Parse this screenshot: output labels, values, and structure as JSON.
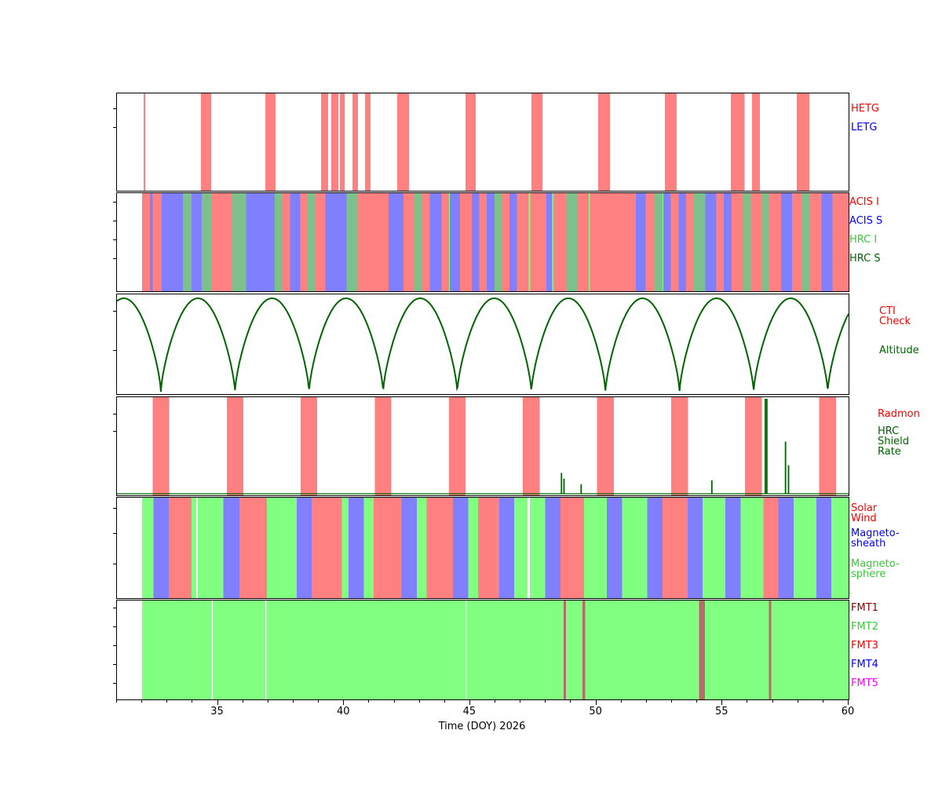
{
  "xlabel_text": "Time (DOY) 2026",
  "chart_data": {
    "type": "timeline",
    "title": "",
    "xlabel": "Time (DOY) 2026",
    "x_axis": {
      "min": 31,
      "max": 60,
      "major_ticks": [
        35,
        40,
        45,
        50,
        55,
        60
      ],
      "minor_tick_step": 1
    },
    "panels": [
      {
        "id": "gratings",
        "labels": [
          {
            "lines": [
              "HETG"
            ],
            "color": "#ff0000"
          },
          {
            "lines": [
              "LETG"
            ],
            "color": "#0000ff"
          }
        ],
        "bar_color": "#ff8080",
        "hetg_intervals": [
          [
            32.06,
            32.12
          ],
          [
            34.33,
            34.73
          ],
          [
            36.88,
            37.29
          ],
          [
            39.09,
            39.37
          ],
          [
            39.5,
            39.78
          ],
          [
            39.84,
            40.03
          ],
          [
            40.34,
            40.56
          ],
          [
            40.83,
            41.05
          ],
          [
            42.11,
            42.58
          ],
          [
            44.82,
            45.22
          ],
          [
            47.43,
            47.87
          ],
          [
            50.08,
            50.54
          ],
          [
            52.72,
            53.19
          ],
          [
            55.34,
            55.87
          ],
          [
            56.18,
            56.49
          ],
          [
            57.95,
            58.45
          ]
        ],
        "letg_intervals": []
      },
      {
        "id": "instruments",
        "labels": [
          {
            "lines": [
              "ACIS I"
            ],
            "color": "#ff0000"
          },
          {
            "lines": [
              "ACIS S"
            ],
            "color": "#0000ff"
          },
          {
            "lines": [
              "HRC I"
            ],
            "color": "#33cc33"
          },
          {
            "lines": [
              "HRC S"
            ],
            "color": "#006400"
          }
        ],
        "colors": {
          "I": "#ff8080",
          "S": "#8080ff",
          "HI": "#80ff80",
          "HS": "#7cc18c"
        },
        "segments": [
          [
            32.0,
            32.3,
            "I"
          ],
          [
            32.3,
            32.42,
            "S"
          ],
          [
            32.42,
            32.78,
            "I"
          ],
          [
            32.78,
            33.62,
            "S"
          ],
          [
            33.62,
            33.96,
            "HS"
          ],
          [
            33.96,
            34.36,
            "S"
          ],
          [
            34.36,
            34.74,
            "HS"
          ],
          [
            34.74,
            35.58,
            "I"
          ],
          [
            35.58,
            36.12,
            "HS"
          ],
          [
            36.12,
            37.26,
            "S"
          ],
          [
            37.26,
            37.56,
            "HS"
          ],
          [
            37.56,
            37.86,
            "I"
          ],
          [
            37.86,
            38.26,
            "S"
          ],
          [
            38.26,
            38.56,
            "I"
          ],
          [
            38.56,
            38.86,
            "HS"
          ],
          [
            38.86,
            39.26,
            "I"
          ],
          [
            39.26,
            40.1,
            "S"
          ],
          [
            40.1,
            40.56,
            "HS"
          ],
          [
            40.56,
            41.76,
            "I"
          ],
          [
            41.76,
            42.36,
            "S"
          ],
          [
            42.36,
            42.8,
            "I"
          ],
          [
            42.8,
            43.1,
            "HS"
          ],
          [
            43.1,
            43.4,
            "I"
          ],
          [
            43.4,
            43.86,
            "S"
          ],
          [
            43.86,
            44.16,
            "I"
          ],
          [
            44.16,
            44.2,
            "HI"
          ],
          [
            44.2,
            44.6,
            "S"
          ],
          [
            44.6,
            45.06,
            "I"
          ],
          [
            45.06,
            45.36,
            "S"
          ],
          [
            45.36,
            45.66,
            "I"
          ],
          [
            45.66,
            45.96,
            "S"
          ],
          [
            45.96,
            46.26,
            "HS"
          ],
          [
            46.26,
            46.56,
            "I"
          ],
          [
            46.56,
            46.86,
            "S"
          ],
          [
            46.86,
            47.32,
            "I"
          ],
          [
            47.32,
            47.38,
            "HI"
          ],
          [
            47.38,
            48.02,
            "I"
          ],
          [
            48.02,
            48.26,
            "S"
          ],
          [
            48.26,
            48.3,
            "HI"
          ],
          [
            48.3,
            48.82,
            "I"
          ],
          [
            48.82,
            49.26,
            "HS"
          ],
          [
            49.26,
            49.7,
            "I"
          ],
          [
            49.7,
            49.74,
            "HI"
          ],
          [
            49.74,
            51.56,
            "I"
          ],
          [
            51.56,
            51.96,
            "S"
          ],
          [
            51.96,
            52.32,
            "I"
          ],
          [
            52.32,
            52.62,
            "HS"
          ],
          [
            52.62,
            52.66,
            "HI"
          ],
          [
            52.66,
            52.96,
            "S"
          ],
          [
            52.96,
            53.26,
            "I"
          ],
          [
            53.26,
            53.56,
            "S"
          ],
          [
            53.56,
            53.86,
            "I"
          ],
          [
            53.86,
            54.32,
            "HS"
          ],
          [
            54.32,
            54.76,
            "S"
          ],
          [
            54.76,
            55.06,
            "I"
          ],
          [
            55.06,
            55.36,
            "S"
          ],
          [
            55.36,
            55.82,
            "I"
          ],
          [
            55.82,
            56.12,
            "HS"
          ],
          [
            56.12,
            56.56,
            "I"
          ],
          [
            56.56,
            56.86,
            "HS"
          ],
          [
            56.86,
            57.32,
            "I"
          ],
          [
            57.32,
            57.76,
            "S"
          ],
          [
            57.76,
            58.16,
            "I"
          ],
          [
            58.16,
            58.46,
            "HS"
          ],
          [
            58.46,
            58.92,
            "I"
          ],
          [
            58.92,
            59.36,
            "S"
          ],
          [
            59.36,
            60.0,
            "I"
          ]
        ]
      },
      {
        "id": "altitude",
        "labels": [
          {
            "lines": [
              "CTI",
              "Check"
            ],
            "color": "#ff0000"
          },
          {
            "lines": [
              "Altitude"
            ],
            "color": "#006400"
          }
        ],
        "line_color": "#006400",
        "first_perigee": 32.74,
        "period": 2.937,
        "perigee_times": [
          32.74,
          35.68,
          38.61,
          41.55,
          44.49,
          47.42,
          50.36,
          53.3,
          56.23,
          59.17
        ]
      },
      {
        "id": "radmon",
        "labels": [
          {
            "lines": [
              "Radmon"
            ],
            "color": "#ff0000"
          },
          {
            "lines": [
              "HRC",
              "Shield",
              "Rate"
            ],
            "color": "#006400"
          }
        ],
        "bar_color": "#ff8080",
        "spike_color": "#006400",
        "radmon_disable_intervals": [
          [
            32.41,
            33.07
          ],
          [
            35.35,
            36.01
          ],
          [
            38.28,
            38.94
          ],
          [
            41.22,
            41.88
          ],
          [
            44.16,
            44.82
          ],
          [
            47.09,
            47.75
          ],
          [
            50.03,
            50.69
          ],
          [
            52.97,
            53.63
          ],
          [
            55.9,
            56.56
          ],
          [
            58.84,
            59.5
          ]
        ],
        "shield_rate_spikes": [
          {
            "t": 48.62,
            "h": 0.22
          },
          {
            "t": 48.72,
            "h": 0.16
          },
          {
            "t": 49.4,
            "h": 0.1
          },
          {
            "t": 54.58,
            "h": 0.14
          },
          {
            "t": 56.7,
            "h": 1.0
          },
          {
            "t": 56.76,
            "h": 1.0
          },
          {
            "t": 57.5,
            "h": 0.55
          },
          {
            "t": 57.62,
            "h": 0.3
          }
        ]
      },
      {
        "id": "regions",
        "labels": [
          {
            "lines": [
              "Solar",
              "Wind"
            ],
            "color": "#ff0000"
          },
          {
            "lines": [
              "Magneto-",
              "sheath"
            ],
            "color": "#0000ff"
          },
          {
            "lines": [
              "Magneto-",
              "sphere"
            ],
            "color": "#33cc33"
          }
        ],
        "colors": {
          "wind": "#ff8080",
          "sheath": "#8080ff",
          "sphere": "#80ff80"
        },
        "segments": [
          [
            32.0,
            32.45,
            "sphere"
          ],
          [
            32.45,
            33.05,
            "sheath"
          ],
          [
            33.05,
            33.95,
            "wind"
          ],
          [
            33.95,
            34.15,
            "sphere"
          ],
          [
            34.2,
            35.22,
            "sphere"
          ],
          [
            35.22,
            35.85,
            "sheath"
          ],
          [
            35.85,
            36.95,
            "wind"
          ],
          [
            36.95,
            38.12,
            "sphere"
          ],
          [
            38.12,
            38.72,
            "sheath"
          ],
          [
            38.72,
            39.92,
            "wind"
          ],
          [
            39.92,
            40.18,
            "sphere"
          ],
          [
            40.18,
            40.78,
            "sheath"
          ],
          [
            40.78,
            41.18,
            "sphere"
          ],
          [
            41.18,
            42.28,
            "wind"
          ],
          [
            42.28,
            42.88,
            "sheath"
          ],
          [
            42.88,
            43.28,
            "sphere"
          ],
          [
            43.28,
            44.32,
            "wind"
          ],
          [
            44.32,
            44.92,
            "sheath"
          ],
          [
            44.92,
            45.32,
            "sphere"
          ],
          [
            45.32,
            46.15,
            "wind"
          ],
          [
            46.15,
            46.75,
            "sheath"
          ],
          [
            46.75,
            47.28,
            "sphere"
          ],
          [
            47.36,
            47.98,
            "sphere"
          ],
          [
            47.98,
            48.58,
            "sheath"
          ],
          [
            48.58,
            49.52,
            "wind"
          ],
          [
            49.52,
            50.42,
            "sphere"
          ],
          [
            50.42,
            51.02,
            "sheath"
          ],
          [
            51.02,
            52.02,
            "sphere"
          ],
          [
            52.02,
            52.62,
            "sheath"
          ],
          [
            52.62,
            53.62,
            "wind"
          ],
          [
            53.62,
            54.22,
            "sheath"
          ],
          [
            54.22,
            55.12,
            "sphere"
          ],
          [
            55.12,
            55.72,
            "sheath"
          ],
          [
            55.72,
            56.62,
            "sphere"
          ],
          [
            56.62,
            57.22,
            "wind"
          ],
          [
            57.22,
            57.82,
            "sheath"
          ],
          [
            57.82,
            58.72,
            "sphere"
          ],
          [
            58.72,
            59.32,
            "sheath"
          ],
          [
            59.32,
            60.0,
            "sphere"
          ]
        ]
      },
      {
        "id": "fmt",
        "labels": [
          {
            "lines": [
              "FMT1"
            ],
            "color": "#8b0000"
          },
          {
            "lines": [
              "FMT2"
            ],
            "color": "#33cc33"
          },
          {
            "lines": [
              "FMT3"
            ],
            "color": "#ff0000"
          },
          {
            "lines": [
              "FMT4"
            ],
            "color": "#0000ff"
          },
          {
            "lines": [
              "FMT5"
            ],
            "color": "#ff00ff"
          }
        ],
        "colors": {
          "FMT1": "#b96a6a",
          "FMT2": "#80ff80"
        },
        "base": {
          "start": 32.0,
          "end": 60.0,
          "format": "FMT2"
        },
        "fmt1_intervals": [
          [
            48.7,
            48.8
          ],
          [
            49.45,
            49.56
          ],
          [
            54.08,
            54.3
          ],
          [
            56.84,
            56.94
          ]
        ],
        "gap_lines": [
          34.76,
          36.88,
          44.82
        ]
      }
    ]
  }
}
